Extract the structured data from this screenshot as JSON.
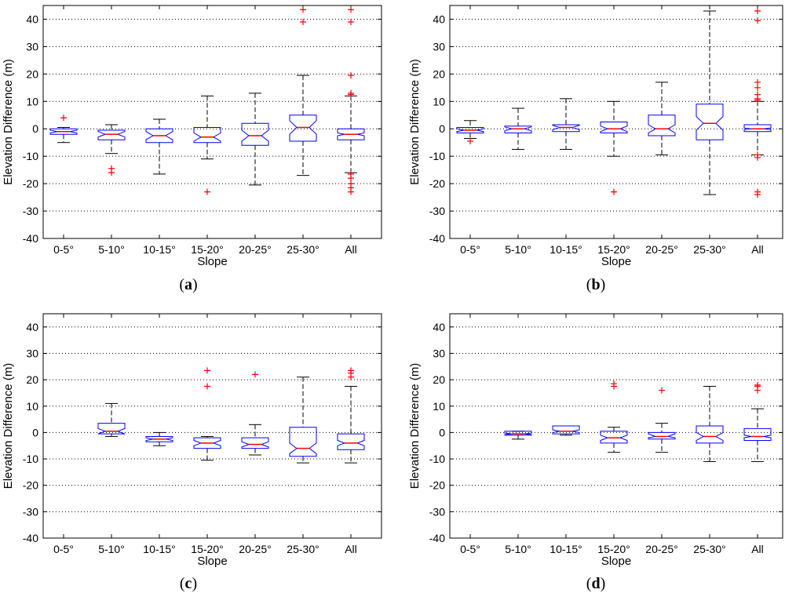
{
  "figure": {
    "ylabel": "Elevation Difference (m)",
    "xlabel": "Slope",
    "categories": [
      "0-5°",
      "5-10°",
      "10-15°",
      "15-20°",
      "20-25°",
      "25-30°",
      "All"
    ],
    "yticks": [
      "40",
      "30",
      "20",
      "10",
      "0",
      "-10",
      "-20",
      "-30",
      "-40"
    ],
    "colors": {
      "box": "#0000ff",
      "median": "#ff0000",
      "outlier": "#ff0000",
      "whisker": "#000000",
      "grid": "#000000"
    }
  },
  "chart_data": [
    {
      "type": "box",
      "panel": "a",
      "title": "",
      "xlabel": "Slope",
      "ylabel": "Elevation Difference (m)",
      "ylim": [
        -40,
        45
      ],
      "yticks": [
        40,
        30,
        20,
        10,
        0,
        -10,
        -20,
        -30,
        -40
      ],
      "grid": "y-dotted",
      "notched": true,
      "categories": [
        "0-5°",
        "5-10°",
        "10-15°",
        "15-20°",
        "20-25°",
        "25-30°",
        "All"
      ],
      "boxes": [
        {
          "category": "0-5°",
          "whislo": -5,
          "q1": -2,
          "med": -1,
          "q3": 0,
          "whishi": 0.5,
          "notch": [
            -1.5,
            -0.5
          ],
          "fliers": [
            4
          ]
        },
        {
          "category": "5-10°",
          "whislo": -9,
          "q1": -4,
          "med": -2,
          "q3": -0.5,
          "whishi": 1.5,
          "notch": [
            -3,
            -1
          ],
          "fliers": [
            -14.5,
            -16
          ]
        },
        {
          "category": "10-15°",
          "whislo": -16.5,
          "q1": -5,
          "med": -2.5,
          "q3": 0,
          "whishi": 3.5,
          "notch": [
            -4,
            -1
          ],
          "fliers": []
        },
        {
          "category": "15-20°",
          "whislo": -11,
          "q1": -5,
          "med": -3,
          "q3": 0.5,
          "whishi": 12,
          "notch": [
            -4.5,
            -1.5
          ],
          "fliers": [
            -23
          ]
        },
        {
          "category": "20-25°",
          "whislo": -20.5,
          "q1": -6,
          "med": -2.5,
          "q3": 2,
          "whishi": 13,
          "notch": [
            -4.5,
            -0.5
          ],
          "fliers": []
        },
        {
          "category": "25-30°",
          "whislo": -17,
          "q1": -4.5,
          "med": 0.5,
          "q3": 5,
          "whishi": 19.5,
          "notch": [
            -2,
            3
          ],
          "fliers": [
            39,
            43.5
          ]
        },
        {
          "category": "All",
          "whislo": -16,
          "q1": -4,
          "med": -2,
          "q3": 0,
          "whishi": 12,
          "notch": [
            -2.5,
            -1.5
          ],
          "fliers": [
            39,
            43.5,
            19.5,
            13,
            12.5,
            -16.5,
            -18,
            -20,
            -21.5,
            -23
          ]
        }
      ]
    },
    {
      "type": "box",
      "panel": "b",
      "title": "",
      "xlabel": "Slope",
      "ylabel": "Elevation Difference (m)",
      "ylim": [
        -40,
        45
      ],
      "yticks": [
        40,
        30,
        20,
        10,
        0,
        -10,
        -20,
        -30,
        -40
      ],
      "grid": "y-dotted",
      "notched": true,
      "categories": [
        "0-5°",
        "5-10°",
        "10-15°",
        "15-20°",
        "20-25°",
        "25-30°",
        "All"
      ],
      "boxes": [
        {
          "category": "0-5°",
          "whislo": -3.5,
          "q1": -1.5,
          "med": -0.5,
          "q3": 0.5,
          "whishi": 3,
          "notch": [
            -1,
            0
          ],
          "fliers": [
            -4.5
          ]
        },
        {
          "category": "5-10°",
          "whislo": -7.5,
          "q1": -1.5,
          "med": 0,
          "q3": 1,
          "whishi": 7.5,
          "notch": [
            -0.7,
            0.7
          ],
          "fliers": []
        },
        {
          "category": "10-15°",
          "whislo": -7.5,
          "q1": -1,
          "med": 0.5,
          "q3": 1.5,
          "whishi": 11,
          "notch": [
            -0.3,
            1.3
          ],
          "fliers": []
        },
        {
          "category": "15-20°",
          "whislo": -10,
          "q1": -1.5,
          "med": 0,
          "q3": 2.5,
          "whishi": 10,
          "notch": [
            -1,
            1
          ],
          "fliers": [
            -23
          ]
        },
        {
          "category": "20-25°",
          "whislo": -9.5,
          "q1": -2.5,
          "med": 0,
          "q3": 5,
          "whishi": 17,
          "notch": [
            -1.5,
            1.5
          ],
          "fliers": []
        },
        {
          "category": "25-30°",
          "whislo": -24,
          "q1": -4,
          "med": 2,
          "q3": 9,
          "whishi": 43,
          "notch": [
            -0.5,
            4.5
          ],
          "fliers": []
        },
        {
          "category": "All",
          "whislo": -9.5,
          "q1": -1,
          "med": 0,
          "q3": 1.5,
          "whishi": 10,
          "notch": [
            -0.3,
            0.3
          ],
          "fliers": [
            43,
            39.5,
            17,
            15,
            12.5,
            11,
            10.5,
            -9.5,
            -10.5,
            -23,
            -24
          ]
        }
      ]
    },
    {
      "type": "box",
      "panel": "c",
      "title": "",
      "xlabel": "Slope",
      "ylabel": "Elevation Difference (m)",
      "ylim": [
        -40,
        45
      ],
      "yticks": [
        40,
        30,
        20,
        10,
        0,
        -10,
        -20,
        -30,
        -40
      ],
      "grid": "y-dotted",
      "notched": true,
      "categories": [
        "0-5°",
        "5-10°",
        "10-15°",
        "15-20°",
        "20-25°",
        "25-30°",
        "All"
      ],
      "boxes": [
        {
          "category": "5-10°",
          "whislo": -1.5,
          "q1": -0.5,
          "med": 0.5,
          "q3": 3.5,
          "whishi": 11,
          "notch": [
            -0.5,
            1.5
          ],
          "fliers": []
        },
        {
          "category": "10-15°",
          "whislo": -5,
          "q1": -3.5,
          "med": -2.5,
          "q3": -1.5,
          "whishi": 0,
          "notch": [
            -3,
            -2
          ],
          "fliers": []
        },
        {
          "category": "15-20°",
          "whislo": -10.5,
          "q1": -6,
          "med": -4,
          "q3": -2,
          "whishi": -1.5,
          "notch": [
            -5,
            -3
          ],
          "fliers": [
            23.5,
            17.5
          ]
        },
        {
          "category": "20-25°",
          "whislo": -8.5,
          "q1": -6,
          "med": -4.5,
          "q3": -2,
          "whishi": 3,
          "notch": [
            -5.5,
            -3.5
          ],
          "fliers": [
            22
          ]
        },
        {
          "category": "25-30°",
          "whislo": -11.5,
          "q1": -9,
          "med": -6,
          "q3": 2,
          "whishi": 21,
          "notch": [
            -8,
            -4
          ],
          "fliers": []
        },
        {
          "category": "All",
          "whislo": -11.5,
          "q1": -6.5,
          "med": -4,
          "q3": -0.5,
          "whishi": 17.5,
          "notch": [
            -5,
            -3
          ],
          "fliers": [
            23.5,
            22.5,
            21
          ]
        }
      ]
    },
    {
      "type": "box",
      "panel": "d",
      "title": "",
      "xlabel": "Slope",
      "ylabel": "Elevation Difference (m)",
      "ylim": [
        -40,
        45
      ],
      "yticks": [
        40,
        30,
        20,
        10,
        0,
        -10,
        -20,
        -30,
        -40
      ],
      "grid": "y-dotted",
      "notched": true,
      "categories": [
        "0-5°",
        "5-10°",
        "10-15°",
        "15-20°",
        "20-25°",
        "25-30°",
        "All"
      ],
      "boxes": [
        {
          "category": "5-10°",
          "whislo": -2.5,
          "q1": -1,
          "med": -0.5,
          "q3": 0.5,
          "whishi": 0.5,
          "notch": [
            -0.8,
            -0.2
          ],
          "fliers": []
        },
        {
          "category": "10-15°",
          "whislo": -1,
          "q1": -0.5,
          "med": 0.5,
          "q3": 2.5,
          "whishi": 2.5,
          "notch": [
            0,
            1
          ],
          "fliers": []
        },
        {
          "category": "15-20°",
          "whislo": -7.5,
          "q1": -4,
          "med": -2,
          "q3": 0.5,
          "whishi": 2,
          "notch": [
            -3,
            -1
          ],
          "fliers": [
            18.5,
            17.5
          ]
        },
        {
          "category": "20-25°",
          "whislo": -7.5,
          "q1": -2.5,
          "med": -1.5,
          "q3": 0,
          "whishi": 3.5,
          "notch": [
            -2,
            -0.5
          ],
          "fliers": [
            16
          ]
        },
        {
          "category": "25-30°",
          "whislo": -11,
          "q1": -4,
          "med": -1.5,
          "q3": 2.5,
          "whishi": 17.5,
          "notch": [
            -3,
            0
          ],
          "fliers": []
        },
        {
          "category": "All",
          "whislo": -11,
          "q1": -3,
          "med": -1.5,
          "q3": 1.5,
          "whishi": 9,
          "notch": [
            -2,
            -1
          ],
          "fliers": [
            18,
            17.5,
            16
          ]
        }
      ]
    }
  ],
  "panel_labels": [
    "(a)",
    "(b)",
    "(c)",
    "(d)"
  ]
}
